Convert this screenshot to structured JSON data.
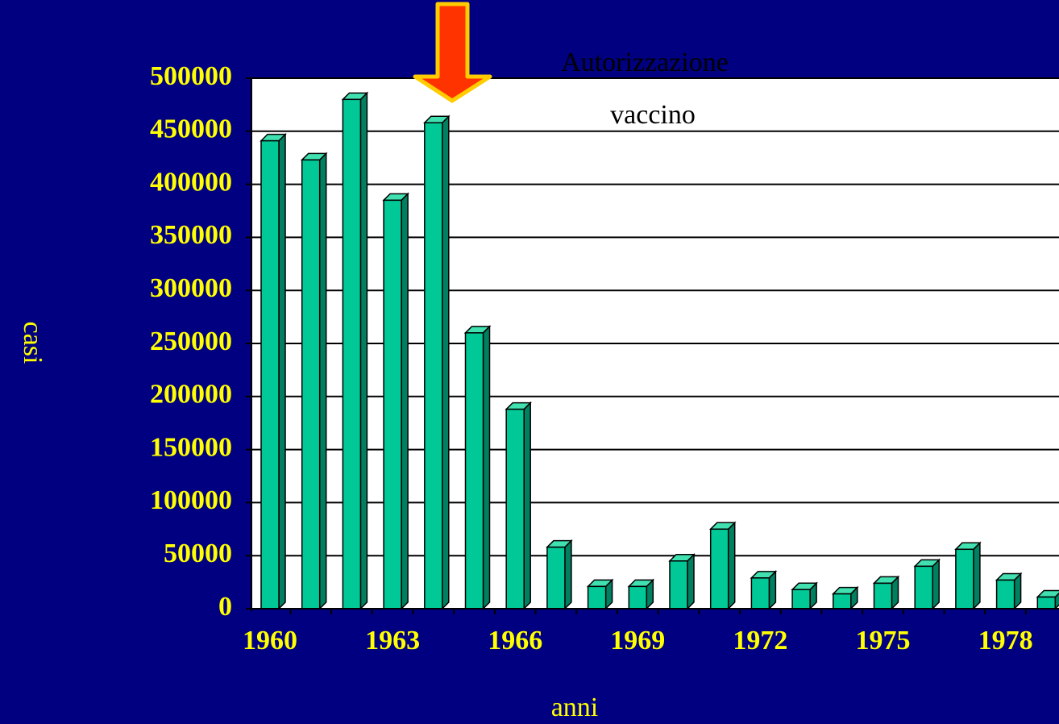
{
  "chart_data": {
    "type": "bar3d",
    "annotation": [
      "Autorizzazione",
      "vaccino"
    ],
    "xlabel": "anni",
    "ylabel": "casi",
    "categories": [
      "1960",
      null,
      null,
      "1963",
      null,
      null,
      "1966",
      null,
      null,
      "1969",
      null,
      null,
      "1972",
      null,
      null,
      "1975",
      null,
      null,
      "1978",
      null
    ],
    "values": [
      441000,
      423000,
      480000,
      385000,
      458000,
      260000,
      188000,
      58000,
      21000,
      21000,
      45000,
      75000,
      29000,
      18000,
      14000,
      24000,
      40000,
      56000,
      27000,
      11000
    ],
    "color": "#00c896",
    "ylim": [
      0,
      500000
    ],
    "yticks": [
      0,
      50000,
      100000,
      150000,
      200000,
      250000,
      300000,
      350000,
      400000,
      450000,
      500000
    ],
    "grid": true
  }
}
